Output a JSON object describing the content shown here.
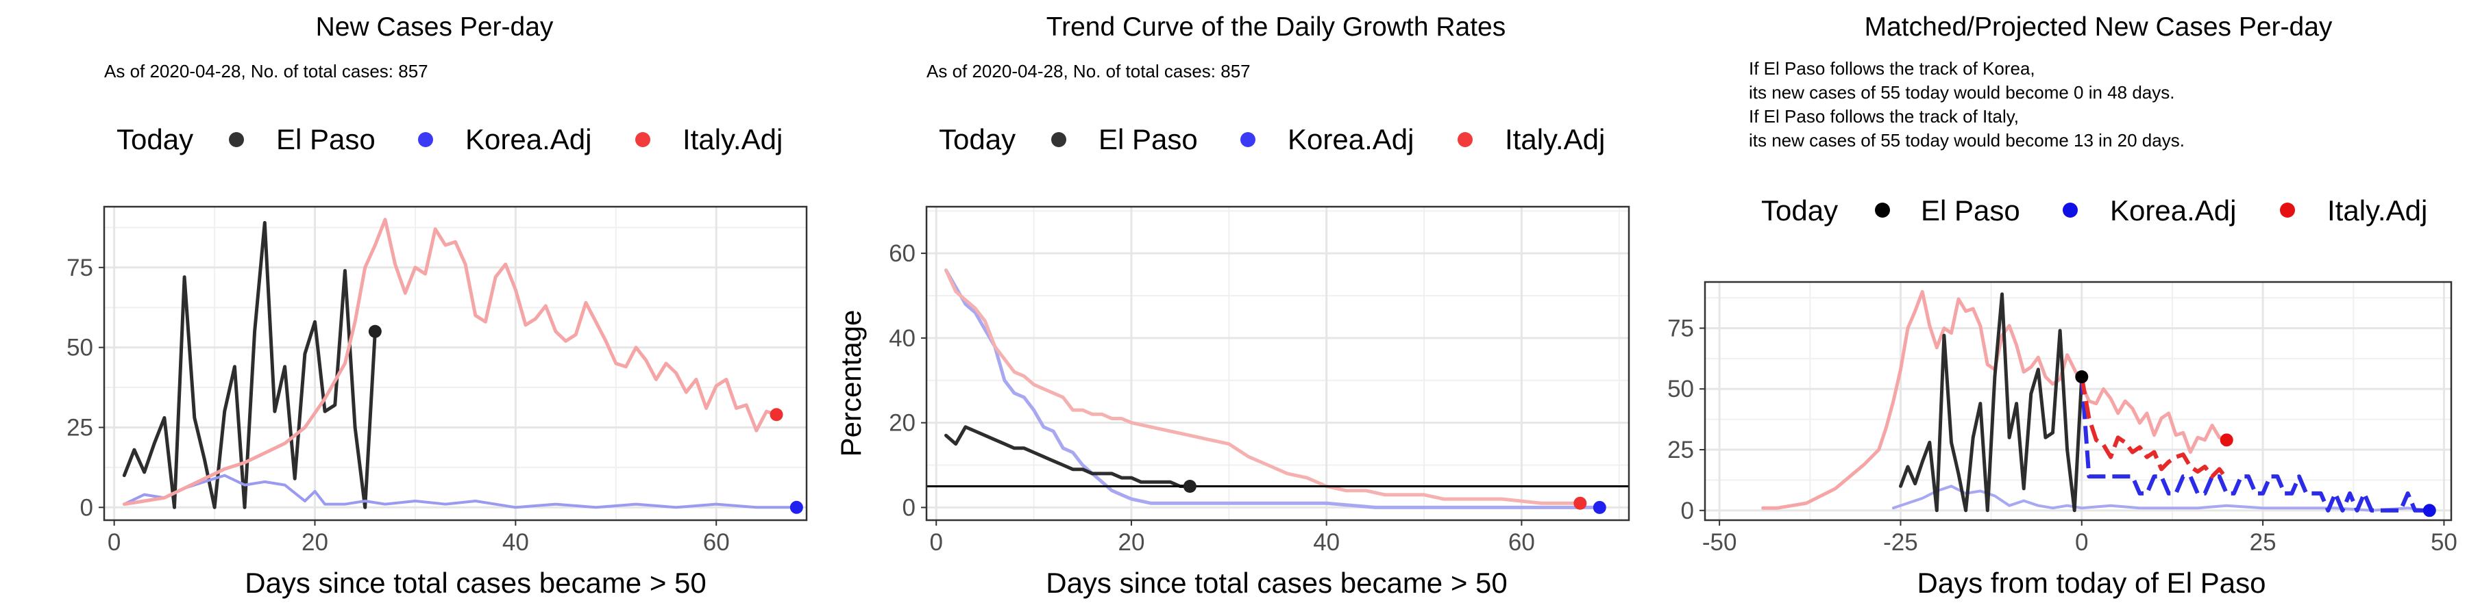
{
  "charts": [
    {
      "type": "line",
      "title": "New Cases Per-day",
      "subtitle": [
        "As of 2020-04-28, No. of total cases: 857"
      ],
      "xlabel": "Days since total cases became > 50",
      "ylabel": "",
      "xlim": [
        -1,
        69
      ],
      "ylim": [
        -4,
        94
      ],
      "xticks": [
        0,
        20,
        40,
        60
      ],
      "yticks": [
        0,
        25,
        50,
        75
      ],
      "legend": {
        "title": "Today",
        "placement": "top",
        "entries": [
          {
            "label": "El Paso",
            "color": "#333333"
          },
          {
            "label": "Korea.Adj",
            "color": "#3b3bf5"
          },
          {
            "label": "Italy.Adj",
            "color": "#f23b3b"
          }
        ]
      },
      "series": [
        {
          "name": "El Paso",
          "color": "#222222",
          "alpha": 0.95,
          "width": 5,
          "x": [
            1,
            2,
            3,
            4,
            5,
            6,
            7,
            8,
            9,
            10,
            11,
            12,
            13,
            14,
            15,
            16,
            17,
            18,
            19,
            20,
            21,
            22,
            23,
            24,
            25,
            26
          ],
          "y": [
            10,
            18,
            11,
            20,
            28,
            0,
            72,
            28,
            15,
            0,
            30,
            44,
            0,
            55,
            89,
            30,
            44,
            9,
            48,
            58,
            30,
            32,
            74,
            25,
            0,
            55
          ],
          "endpoint": {
            "x": 26,
            "y": 55
          }
        },
        {
          "name": "Korea.Adj",
          "color": "#9a9af0",
          "alpha": 1,
          "width": 4,
          "x": [
            1,
            3,
            5,
            7,
            9,
            11,
            13,
            15,
            17,
            19,
            20,
            21,
            23,
            25,
            27,
            30,
            33,
            36,
            40,
            44,
            48,
            52,
            56,
            60,
            64,
            68
          ],
          "y": [
            1,
            4,
            3,
            6,
            8,
            10,
            7,
            8,
            7,
            2,
            5,
            1,
            1,
            2,
            1,
            2,
            1,
            2,
            0,
            1,
            0,
            1,
            0,
            1,
            0,
            0
          ],
          "endpoint": {
            "x": 68,
            "y": 0,
            "color": "#2020f0"
          }
        },
        {
          "name": "Italy.Adj",
          "color": "#f5a5a5",
          "alpha": 1,
          "width": 5,
          "x": [
            1,
            3,
            5,
            7,
            9,
            11,
            13,
            15,
            17,
            19,
            21,
            23,
            24,
            25,
            26,
            27,
            28,
            29,
            30,
            31,
            32,
            33,
            34,
            35,
            36,
            37,
            38,
            39,
            40,
            41,
            42,
            43,
            44,
            45,
            46,
            47,
            48,
            49,
            50,
            51,
            52,
            53,
            54,
            55,
            56,
            57,
            58,
            59,
            60,
            61,
            62,
            63,
            64,
            65,
            66
          ],
          "y": [
            1,
            2,
            3,
            6,
            9,
            12,
            14,
            17,
            20,
            25,
            34,
            45,
            58,
            75,
            82,
            90,
            76,
            67,
            75,
            73,
            87,
            82,
            83,
            76,
            60,
            58,
            72,
            76,
            68,
            57,
            59,
            63,
            55,
            52,
            54,
            64,
            58,
            52,
            45,
            44,
            50,
            46,
            40,
            45,
            42,
            36,
            40,
            31,
            38,
            40,
            31,
            32,
            24,
            30,
            29
          ],
          "endpoint": {
            "x": 66,
            "y": 29,
            "color": "#f03030"
          }
        }
      ]
    },
    {
      "type": "line",
      "title": "Trend Curve of the Daily Growth Rates",
      "subtitle": [
        "As of 2020-04-28, No. of total cases: 857"
      ],
      "xlabel": "Days since total cases became > 50",
      "ylabel": "Percentage",
      "xlim": [
        -1,
        71
      ],
      "ylim": [
        -3,
        71
      ],
      "xticks": [
        0,
        20,
        40,
        60
      ],
      "yticks": [
        0,
        20,
        40,
        60
      ],
      "hline": 5,
      "legend": {
        "title": "Today",
        "placement": "top",
        "entries": [
          {
            "label": "El Paso",
            "color": "#333333"
          },
          {
            "label": "Korea.Adj",
            "color": "#3b3bf5"
          },
          {
            "label": "Italy.Adj",
            "color": "#f23b3b"
          }
        ]
      },
      "series": [
        {
          "name": "Korea.Adj",
          "color": "#a8a8f2",
          "alpha": 1,
          "width": 5,
          "x": [
            1,
            2,
            3,
            4,
            5,
            6,
            7,
            8,
            9,
            10,
            11,
            12,
            13,
            14,
            15,
            16,
            17,
            18,
            19,
            20,
            22,
            24,
            26,
            30,
            35,
            40,
            45,
            50,
            55,
            60,
            65,
            68
          ],
          "y": [
            56,
            52,
            48,
            46,
            42,
            38,
            30,
            27,
            26,
            23,
            19,
            18,
            14,
            13,
            10,
            8,
            6,
            4,
            3,
            2,
            1,
            1,
            1,
            1,
            1,
            1,
            0,
            0,
            0,
            0,
            0,
            0
          ],
          "endpoint": {
            "x": 68,
            "y": 0,
            "color": "#2020f0"
          }
        },
        {
          "name": "Italy.Adj",
          "color": "#f5b0b0",
          "alpha": 1,
          "width": 5,
          "x": [
            1,
            2,
            3,
            4,
            5,
            6,
            7,
            8,
            9,
            10,
            11,
            12,
            13,
            14,
            15,
            16,
            17,
            18,
            19,
            20,
            22,
            24,
            26,
            28,
            30,
            32,
            34,
            36,
            38,
            40,
            42,
            44,
            46,
            48,
            50,
            52,
            55,
            58,
            62,
            66
          ],
          "y": [
            56,
            51,
            49,
            47,
            44,
            38,
            35,
            32,
            31,
            29,
            28,
            27,
            26,
            23,
            23,
            22,
            22,
            21,
            21,
            20,
            19,
            18,
            17,
            16,
            15,
            12,
            10,
            8,
            7,
            5,
            4,
            4,
            3,
            3,
            3,
            2,
            2,
            2,
            1,
            1
          ],
          "endpoint": {
            "x": 66,
            "y": 1,
            "color": "#f03030"
          }
        },
        {
          "name": "El Paso",
          "color": "#222222",
          "alpha": 0.95,
          "width": 5,
          "x": [
            1,
            2,
            3,
            4,
            5,
            6,
            7,
            8,
            9,
            10,
            11,
            12,
            13,
            14,
            15,
            16,
            17,
            18,
            19,
            20,
            21,
            22,
            23,
            24,
            25,
            26
          ],
          "y": [
            17,
            15,
            19,
            18,
            17,
            16,
            15,
            14,
            14,
            13,
            12,
            11,
            10,
            9,
            9,
            8,
            8,
            8,
            7,
            7,
            6,
            6,
            6,
            6,
            5,
            5
          ],
          "endpoint": {
            "x": 26,
            "y": 5
          }
        }
      ]
    },
    {
      "type": "line",
      "title": "Matched/Projected New Cases Per-day",
      "subtitle": [
        "If El Paso follows the track of Korea,",
        "its new cases of 55 today would become 0 in 48 days.",
        "If El Paso follows the track of Italy,",
        "its new cases of 55 today would become 13 in 20 days."
      ],
      "xlabel": "Days from today of El Paso",
      "ylabel": "",
      "xlim": [
        -52,
        51
      ],
      "ylim": [
        -4,
        94
      ],
      "xticks": [
        -50,
        -25,
        0,
        25,
        50
      ],
      "yticks": [
        0,
        25,
        50,
        75
      ],
      "legend": {
        "title": "Today",
        "placement": "top",
        "entries": [
          {
            "label": "El Paso",
            "color": "#000000"
          },
          {
            "label": "Korea.Adj",
            "color": "#1010e6"
          },
          {
            "label": "Italy.Adj",
            "color": "#e61010"
          }
        ]
      },
      "series": [
        {
          "name": "Italy.Adj",
          "color": "#f5a5a5",
          "alpha": 1,
          "width": 5,
          "x": [
            -44,
            -42,
            -40,
            -38,
            -36,
            -34,
            -32,
            -30,
            -28,
            -27,
            -26,
            -25,
            -24,
            -23,
            -22,
            -21,
            -20,
            -19,
            -18,
            -17,
            -16,
            -15,
            -14,
            -13,
            -12,
            -11,
            -10,
            -9,
            -8,
            -7,
            -6,
            -5,
            -4,
            -3,
            -2,
            -1,
            0,
            1,
            2,
            3,
            4,
            5,
            6,
            7,
            8,
            9,
            10,
            11,
            12,
            13,
            14,
            15,
            16,
            17,
            18,
            19,
            20
          ],
          "y": [
            1,
            1,
            2,
            3,
            6,
            9,
            14,
            19,
            25,
            34,
            45,
            58,
            75,
            82,
            90,
            76,
            67,
            75,
            73,
            87,
            82,
            83,
            76,
            60,
            58,
            72,
            76,
            68,
            57,
            59,
            63,
            55,
            52,
            54,
            64,
            58,
            52,
            45,
            44,
            50,
            46,
            40,
            45,
            42,
            36,
            40,
            31,
            38,
            40,
            31,
            32,
            24,
            30,
            29,
            35,
            30,
            29
          ]
        },
        {
          "name": "Korea.Adj",
          "color": "#a8a8f2",
          "alpha": 1,
          "width": 4,
          "x": [
            -26,
            -24,
            -22,
            -20,
            -18,
            -16,
            -14,
            -12,
            -10,
            -8,
            -6,
            -4,
            -2,
            0,
            4,
            8,
            12,
            16,
            20,
            25,
            30,
            35,
            40,
            45,
            48
          ],
          "y": [
            1,
            3,
            5,
            8,
            10,
            7,
            8,
            6,
            2,
            4,
            2,
            1,
            2,
            1,
            2,
            1,
            1,
            1,
            2,
            1,
            1,
            1,
            0,
            1,
            0
          ]
        },
        {
          "name": "El Paso",
          "color": "#222222",
          "alpha": 0.95,
          "width": 5,
          "x": [
            -25,
            -24,
            -23,
            -22,
            -21,
            -20,
            -19,
            -18,
            -17,
            -16,
            -15,
            -14,
            -13,
            -12,
            -11,
            -10,
            -9,
            -8,
            -7,
            -6,
            -5,
            -4,
            -3,
            -2,
            -1,
            0
          ],
          "y": [
            10,
            18,
            11,
            20,
            28,
            0,
            72,
            28,
            15,
            0,
            30,
            44,
            0,
            55,
            89,
            30,
            44,
            9,
            48,
            58,
            30,
            32,
            74,
            25,
            0,
            55
          ]
        },
        {
          "name": "Korea.Adj projection",
          "color": "#2b2be8",
          "alpha": 1,
          "width": 6,
          "dash": true,
          "x": [
            0,
            1,
            2,
            3,
            4,
            5,
            6,
            7,
            8,
            9,
            10,
            11,
            12,
            13,
            14,
            15,
            16,
            17,
            18,
            19,
            20,
            21,
            22,
            23,
            24,
            25,
            26,
            27,
            28,
            29,
            30,
            31,
            32,
            33,
            34,
            35,
            36,
            37,
            38,
            39,
            40,
            41,
            42,
            43,
            44,
            45,
            46,
            47,
            48
          ],
          "y": [
            55,
            14,
            14,
            14,
            14,
            14,
            14,
            14,
            7,
            7,
            14,
            14,
            7,
            7,
            14,
            14,
            7,
            7,
            14,
            14,
            7,
            7,
            14,
            14,
            7,
            7,
            14,
            14,
            7,
            7,
            14,
            7,
            7,
            7,
            0,
            7,
            0,
            7,
            0,
            7,
            0,
            0,
            0,
            0,
            0,
            7,
            0,
            0,
            0
          ],
          "endpoint": {
            "x": 48,
            "y": 0,
            "color": "#1010e6"
          }
        },
        {
          "name": "Italy.Adj projection",
          "color": "#e62a2a",
          "alpha": 1,
          "width": 6,
          "dash": true,
          "x": [
            0,
            1,
            2,
            3,
            4,
            5,
            6,
            7,
            8,
            9,
            10,
            11,
            12,
            13,
            14,
            15,
            16,
            17,
            18,
            19,
            20
          ],
          "y": [
            55,
            38,
            29,
            27,
            22,
            30,
            28,
            24,
            26,
            22,
            24,
            17,
            20,
            22,
            23,
            18,
            16,
            18,
            14,
            17,
            13
          ]
        },
        {
          "name": "El Paso today",
          "color": "#000000",
          "alpha": 1,
          "width": 0,
          "x": [],
          "y": [],
          "endpoint": {
            "x": 0,
            "y": 55,
            "color": "#000000"
          }
        },
        {
          "name": "Italy.Adj end",
          "color": "#e61010",
          "alpha": 1,
          "width": 0,
          "x": [],
          "y": [],
          "endpoint": {
            "x": 20,
            "y": 29,
            "color": "#e61010"
          }
        }
      ]
    }
  ]
}
